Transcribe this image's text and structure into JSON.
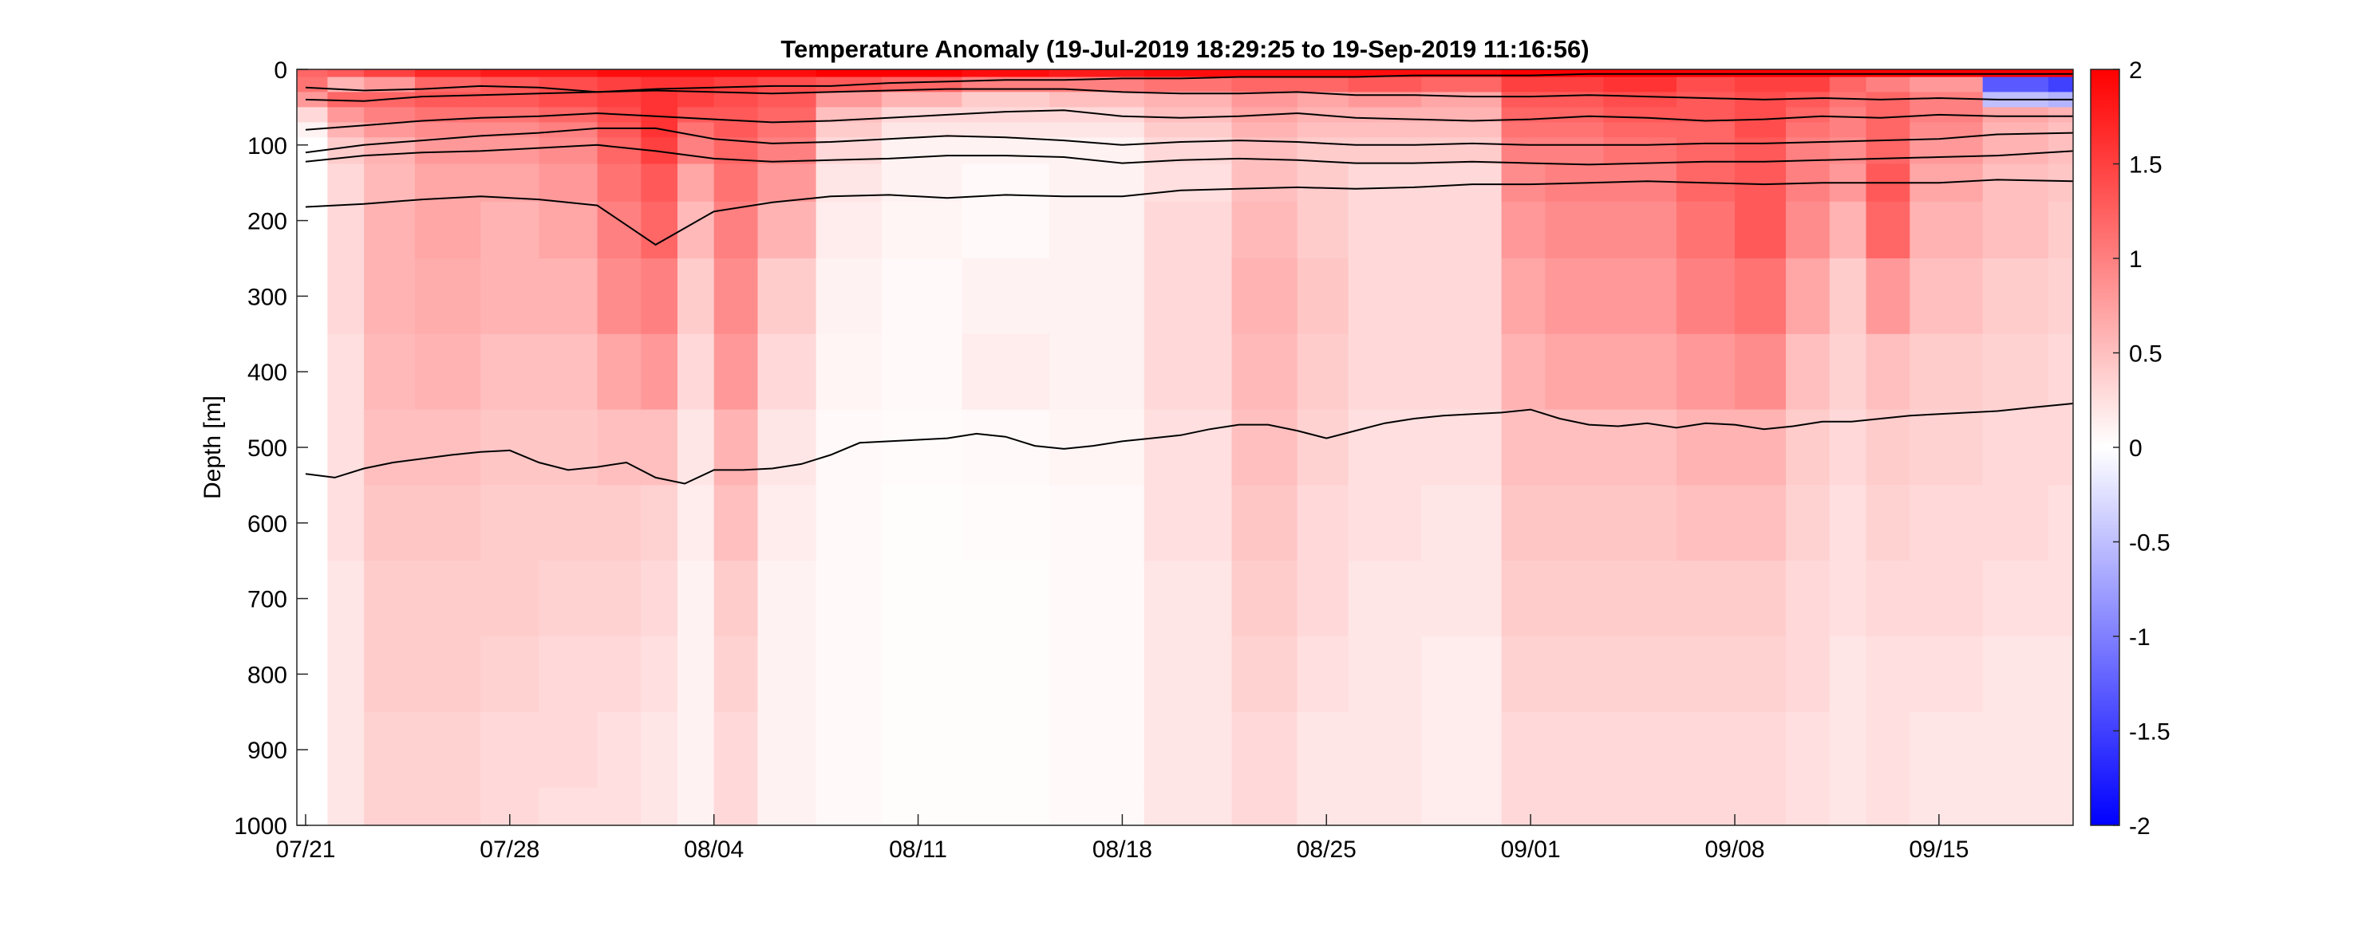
{
  "chart_data": {
    "type": "heatmap",
    "title": "Temperature Anomaly (19-Jul-2019 18:29:25 to 19-Sep-2019 11:16:56)",
    "xlabel": "",
    "ylabel": "Depth [m]",
    "x_axis": {
      "ticks": [
        "07/21",
        "07/28",
        "08/04",
        "08/11",
        "08/18",
        "08/25",
        "09/01",
        "09/08",
        "09/15"
      ],
      "tick_days": [
        0,
        7,
        14,
        21,
        28,
        35,
        42,
        49,
        56
      ],
      "range_days": [
        -0.3,
        60.6
      ]
    },
    "y_axis": {
      "range": [
        0,
        1000
      ],
      "reversed": true,
      "ticks": [
        0,
        100,
        200,
        300,
        400,
        500,
        600,
        700,
        800,
        900,
        1000
      ]
    },
    "colorbar": {
      "range": [
        -2,
        2
      ],
      "ticks": [
        -2,
        -1.5,
        -1,
        -0.5,
        0,
        0.5,
        1,
        1.5,
        2
      ],
      "colors": {
        "low": "#0000ff",
        "mid": "#ffffff",
        "high": "#ff0000"
      },
      "placement": "right"
    },
    "heatmap": {
      "y": [
        0,
        20,
        40,
        60,
        80,
        100,
        150,
        200,
        300,
        400,
        500,
        600,
        700,
        800,
        900,
        1000
      ],
      "x": [
        0,
        1.5,
        2.5,
        5,
        7,
        9,
        11,
        12,
        13.5,
        14.5,
        16.5,
        18.5,
        21,
        24,
        27,
        30.5,
        33,
        35,
        36.5,
        40,
        42,
        43,
        46,
        48,
        50,
        51.5,
        53,
        54,
        56,
        59,
        60.5
      ],
      "values": [
        [
          1.2,
          1.1,
          0.8,
          0.3,
          0.1,
          0.0,
          0.0,
          0.0,
          0.0,
          0.0,
          0.0,
          0.0,
          0.0,
          0.0,
          0.0,
          0.0
        ],
        [
          1.3,
          0.6,
          1.2,
          0.8,
          0.6,
          0.4,
          0.3,
          0.3,
          0.3,
          0.25,
          0.25,
          0.25,
          0.2,
          0.2,
          0.2,
          0.2
        ],
        [
          1.5,
          0.8,
          1.2,
          1.0,
          0.8,
          0.6,
          0.55,
          0.6,
          0.6,
          0.55,
          0.5,
          0.45,
          0.4,
          0.4,
          0.35,
          0.35
        ],
        [
          1.7,
          1.2,
          1.3,
          1.1,
          0.9,
          0.8,
          0.7,
          0.7,
          0.65,
          0.6,
          0.5,
          0.45,
          0.4,
          0.4,
          0.35,
          0.35
        ],
        [
          1.8,
          1.3,
          1.3,
          1.1,
          0.9,
          0.8,
          0.7,
          0.6,
          0.6,
          0.5,
          0.45,
          0.4,
          0.4,
          0.35,
          0.3,
          0.3
        ],
        [
          1.8,
          1.4,
          1.4,
          1.2,
          1.0,
          0.9,
          0.8,
          0.7,
          0.6,
          0.5,
          0.45,
          0.4,
          0.35,
          0.3,
          0.3,
          0.25
        ],
        [
          1.9,
          1.5,
          1.5,
          1.4,
          1.3,
          1.2,
          1.1,
          1.0,
          0.9,
          0.7,
          0.5,
          0.4,
          0.35,
          0.3,
          0.25,
          0.25
        ],
        [
          1.9,
          1.6,
          1.6,
          1.6,
          1.6,
          1.5,
          1.3,
          1.2,
          1.0,
          0.8,
          0.5,
          0.35,
          0.3,
          0.25,
          0.2,
          0.2
        ],
        [
          1.9,
          1.6,
          1.5,
          1.3,
          1.1,
          1.0,
          0.7,
          0.55,
          0.4,
          0.3,
          0.2,
          0.15,
          0.1,
          0.1,
          0.1,
          0.1
        ],
        [
          1.9,
          1.5,
          1.4,
          1.3,
          1.3,
          1.2,
          1.1,
          1.0,
          0.9,
          0.8,
          0.6,
          0.5,
          0.4,
          0.35,
          0.3,
          0.3
        ],
        [
          1.9,
          1.4,
          1.3,
          1.2,
          1.1,
          1.0,
          0.8,
          0.6,
          0.4,
          0.3,
          0.2,
          0.15,
          0.1,
          0.1,
          0.1,
          0.1
        ],
        [
          2.0,
          1.3,
          0.8,
          0.5,
          0.4,
          0.3,
          0.2,
          0.15,
          0.1,
          0.08,
          0.05,
          0.05,
          0.05,
          0.05,
          0.05,
          0.05
        ],
        [
          2.0,
          1.2,
          0.6,
          0.3,
          0.2,
          0.1,
          0.1,
          0.08,
          0.05,
          0.05,
          0.03,
          0.02,
          0.02,
          0.02,
          0.02,
          0.02
        ],
        [
          1.9,
          1.0,
          0.4,
          0.3,
          0.2,
          0.1,
          0.05,
          0.05,
          0.1,
          0.15,
          0.05,
          0.03,
          0.02,
          0.02,
          0.02,
          0.02
        ],
        [
          1.8,
          1.0,
          0.5,
          0.3,
          0.2,
          0.1,
          0.1,
          0.1,
          0.1,
          0.1,
          0.08,
          0.05,
          0.05,
          0.05,
          0.05,
          0.05
        ],
        [
          1.9,
          1.1,
          0.6,
          0.5,
          0.4,
          0.3,
          0.25,
          0.3,
          0.3,
          0.3,
          0.25,
          0.25,
          0.2,
          0.2,
          0.2,
          0.2
        ],
        [
          1.9,
          1.2,
          0.8,
          0.7,
          0.6,
          0.5,
          0.5,
          0.55,
          0.6,
          0.55,
          0.5,
          0.45,
          0.4,
          0.35,
          0.3,
          0.3
        ],
        [
          1.9,
          1.2,
          0.7,
          0.6,
          0.5,
          0.4,
          0.4,
          0.4,
          0.45,
          0.4,
          0.35,
          0.3,
          0.3,
          0.25,
          0.2,
          0.2
        ],
        [
          1.9,
          1.3,
          0.8,
          0.6,
          0.5,
          0.4,
          0.3,
          0.3,
          0.3,
          0.3,
          0.25,
          0.25,
          0.2,
          0.2,
          0.2,
          0.2
        ],
        [
          1.9,
          1.2,
          0.7,
          0.6,
          0.5,
          0.4,
          0.3,
          0.3,
          0.3,
          0.3,
          0.25,
          0.2,
          0.2,
          0.15,
          0.15,
          0.15
        ],
        [
          2.0,
          1.5,
          1.3,
          1.2,
          1.1,
          1.0,
          0.9,
          0.8,
          0.7,
          0.6,
          0.5,
          0.45,
          0.4,
          0.35,
          0.3,
          0.3
        ],
        [
          2.0,
          1.5,
          1.3,
          1.2,
          1.1,
          1.0,
          1.0,
          0.9,
          0.8,
          0.7,
          0.5,
          0.45,
          0.4,
          0.35,
          0.3,
          0.3
        ],
        [
          2.0,
          1.6,
          1.4,
          1.3,
          1.2,
          1.1,
          1.0,
          0.9,
          0.8,
          0.7,
          0.5,
          0.45,
          0.4,
          0.35,
          0.3,
          0.3
        ],
        [
          2.0,
          1.4,
          1.3,
          1.3,
          1.2,
          1.2,
          1.2,
          1.1,
          1.0,
          0.8,
          0.6,
          0.5,
          0.4,
          0.35,
          0.3,
          0.3
        ],
        [
          2.0,
          1.5,
          1.4,
          1.4,
          1.4,
          1.3,
          1.3,
          1.3,
          1.1,
          0.9,
          0.6,
          0.5,
          0.4,
          0.35,
          0.3,
          0.3
        ],
        [
          2.0,
          1.5,
          1.3,
          1.2,
          1.1,
          1.0,
          1.0,
          0.9,
          0.7,
          0.5,
          0.4,
          0.35,
          0.3,
          0.3,
          0.25,
          0.25
        ],
        [
          2.0,
          1.2,
          1.1,
          1.0,
          1.0,
          0.9,
          0.8,
          0.6,
          0.4,
          0.35,
          0.3,
          0.25,
          0.25,
          0.2,
          0.2,
          0.2
        ],
        [
          2.0,
          1.0,
          1.2,
          1.2,
          1.2,
          1.2,
          1.3,
          1.2,
          0.8,
          0.5,
          0.4,
          0.35,
          0.3,
          0.25,
          0.25,
          0.25
        ],
        [
          2.0,
          0.8,
          1.0,
          1.0,
          0.9,
          0.8,
          0.7,
          0.6,
          0.5,
          0.4,
          0.35,
          0.3,
          0.3,
          0.25,
          0.2,
          0.2
        ],
        [
          2.0,
          -1.3,
          -0.5,
          0.7,
          0.6,
          0.6,
          0.5,
          0.5,
          0.4,
          0.35,
          0.3,
          0.3,
          0.25,
          0.2,
          0.2,
          0.2
        ],
        [
          2.0,
          -1.5,
          -0.6,
          0.6,
          0.5,
          0.5,
          0.45,
          0.4,
          0.35,
          0.3,
          0.3,
          0.25,
          0.25,
          0.2,
          0.2,
          0.2
        ]
      ]
    },
    "contours": [
      {
        "x": [
          0,
          2,
          4,
          6,
          8,
          10,
          12,
          14,
          16,
          18,
          20,
          22,
          24,
          26,
          28,
          30,
          32,
          34,
          36,
          38,
          40,
          42,
          44,
          46,
          48,
          50,
          52,
          54,
          56,
          58,
          60.6
        ],
        "y": [
          24,
          28,
          26,
          22,
          24,
          30,
          26,
          24,
          22,
          22,
          18,
          16,
          14,
          14,
          12,
          12,
          10,
          10,
          10,
          8,
          8,
          8,
          6,
          6,
          6,
          6,
          6,
          6,
          6,
          6,
          6
        ]
      },
      {
        "x": [
          0,
          2,
          4,
          6,
          8,
          10,
          12,
          14,
          16,
          18,
          20,
          22,
          24,
          26,
          28,
          30,
          32,
          34,
          36,
          38,
          40,
          42,
          44,
          46,
          48,
          50,
          52,
          54,
          56,
          58,
          60.6
        ],
        "y": [
          40,
          42,
          36,
          34,
          32,
          30,
          28,
          30,
          32,
          30,
          28,
          26,
          26,
          26,
          30,
          32,
          32,
          30,
          34,
          34,
          36,
          36,
          34,
          36,
          38,
          40,
          38,
          40,
          38,
          40,
          40
        ]
      },
      {
        "x": [
          0,
          2,
          4,
          6,
          8,
          10,
          12,
          14,
          16,
          18,
          20,
          22,
          24,
          26,
          28,
          30,
          32,
          34,
          36,
          38,
          40,
          42,
          44,
          46,
          48,
          50,
          52,
          54,
          56,
          58,
          60.6
        ],
        "y": [
          80,
          74,
          68,
          64,
          62,
          58,
          62,
          66,
          70,
          68,
          64,
          60,
          56,
          54,
          62,
          64,
          62,
          58,
          64,
          66,
          68,
          66,
          62,
          64,
          68,
          66,
          62,
          64,
          60,
          62,
          62
        ]
      },
      {
        "x": [
          0,
          2,
          4,
          6,
          8,
          10,
          12,
          14,
          16,
          18,
          20,
          22,
          24,
          26,
          28,
          30,
          32,
          34,
          36,
          38,
          40,
          42,
          44,
          46,
          48,
          50,
          52,
          54,
          56,
          58,
          60.6
        ],
        "y": [
          110,
          100,
          94,
          88,
          84,
          78,
          78,
          92,
          98,
          96,
          92,
          88,
          90,
          94,
          100,
          96,
          94,
          96,
          100,
          100,
          98,
          100,
          100,
          100,
          98,
          98,
          96,
          94,
          92,
          86,
          84
        ]
      },
      {
        "x": [
          0,
          2,
          4,
          6,
          8,
          10,
          12,
          14,
          16,
          18,
          20,
          22,
          24,
          26,
          28,
          30,
          32,
          34,
          36,
          38,
          40,
          42,
          44,
          46,
          48,
          50,
          52,
          54,
          56,
          58,
          60.6
        ],
        "y": [
          122,
          114,
          110,
          108,
          104,
          100,
          108,
          118,
          122,
          120,
          118,
          114,
          114,
          116,
          124,
          120,
          118,
          120,
          124,
          124,
          122,
          124,
          126,
          124,
          122,
          122,
          120,
          118,
          116,
          114,
          108
        ]
      },
      {
        "x": [
          0,
          2,
          4,
          6,
          8,
          10,
          12,
          14,
          16,
          18,
          20,
          22,
          24,
          26,
          28,
          30,
          32,
          34,
          36,
          38,
          40,
          42,
          44,
          46,
          48,
          50,
          52,
          54,
          56,
          58,
          60.6
        ],
        "y": [
          182,
          178,
          172,
          168,
          172,
          180,
          232,
          188,
          176,
          168,
          166,
          170,
          166,
          168,
          168,
          160,
          158,
          156,
          158,
          156,
          152,
          152,
          150,
          148,
          150,
          152,
          150,
          150,
          150,
          146,
          148
        ]
      },
      {
        "x": [
          0,
          1,
          2,
          3,
          4,
          5,
          6,
          7,
          8,
          9,
          10,
          11,
          12,
          13,
          14,
          15,
          16,
          17,
          18,
          19,
          20,
          21,
          22,
          23,
          24,
          25,
          26,
          27,
          28,
          29,
          30,
          31,
          32,
          33,
          34,
          35,
          36,
          37,
          38,
          39,
          40,
          41,
          42,
          43,
          44,
          45,
          46,
          47,
          48,
          49,
          50,
          51,
          52,
          53,
          54,
          55,
          56,
          57,
          58,
          59,
          60.6
        ],
        "y": [
          535,
          540,
          528,
          520,
          515,
          510,
          506,
          504,
          520,
          530,
          526,
          520,
          540,
          548,
          530,
          530,
          528,
          522,
          510,
          494,
          492,
          490,
          488,
          482,
          486,
          498,
          502,
          498,
          492,
          488,
          484,
          476,
          470,
          470,
          478,
          488,
          478,
          468,
          462,
          458,
          456,
          454,
          450,
          462,
          470,
          472,
          468,
          474,
          468,
          470,
          476,
          472,
          466,
          466,
          462,
          458,
          456,
          454,
          452,
          448,
          442
        ]
      }
    ]
  }
}
